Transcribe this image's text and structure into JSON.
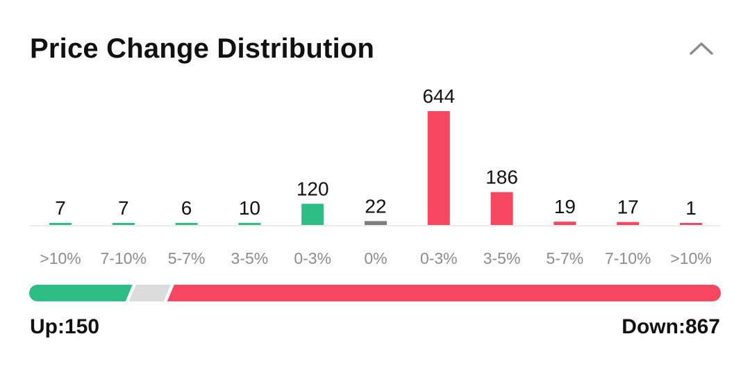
{
  "header": {
    "title": "Price Change Distribution",
    "collapse_icon": "chevron-up-icon"
  },
  "colors": {
    "up": "#2dbd85",
    "flat": "#7d7d7d",
    "down": "#f5475f",
    "neutral_track": "#dcdcdc",
    "baseline": "#ececec",
    "label": "#111111",
    "tick": "#8c8c8c"
  },
  "chart_data": {
    "type": "bar",
    "categories": [
      ">10%",
      "7-10%",
      "5-7%",
      "3-5%",
      "0-3%",
      "0%",
      "0-3%",
      "3-5%",
      "5-7%",
      "7-10%",
      ">10%"
    ],
    "values": [
      7,
      7,
      6,
      10,
      120,
      22,
      644,
      186,
      19,
      17,
      1
    ],
    "groups": [
      "up",
      "up",
      "up",
      "up",
      "up",
      "flat",
      "down",
      "down",
      "down",
      "down",
      "down"
    ]
  },
  "summary": {
    "up_label": "Up:150",
    "down_label": "Down:867",
    "up_count": 150,
    "flat_count": 22,
    "down_count": 867
  }
}
